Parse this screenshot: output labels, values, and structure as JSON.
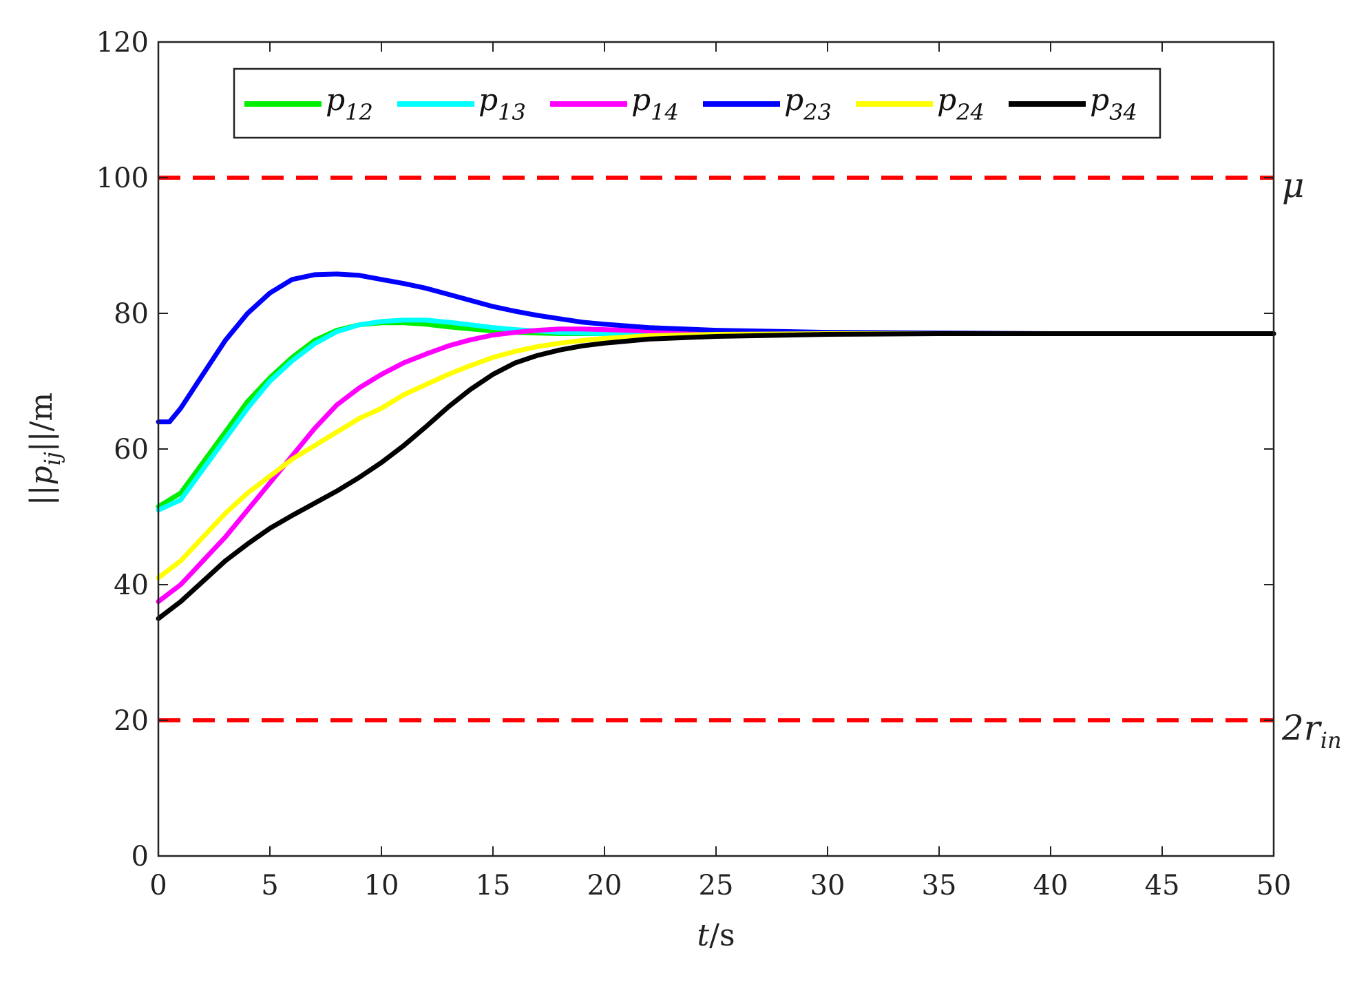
{
  "chart_data": {
    "type": "line",
    "title": "",
    "xlabel": {
      "var": "t",
      "unit": "/s"
    },
    "ylabel": {
      "pre": "||",
      "var": "p",
      "sub": "ij",
      "post": "||/m"
    },
    "xlim": [
      0,
      50
    ],
    "ylim": [
      0,
      120
    ],
    "xticks": [
      0,
      5,
      10,
      15,
      20,
      25,
      30,
      35,
      40,
      45,
      50
    ],
    "yticks": [
      0,
      20,
      40,
      60,
      80,
      100,
      120
    ],
    "grid": false,
    "legend_position": "top",
    "reference_lines": [
      {
        "name": "mu",
        "y": 100,
        "color": "#ff0000",
        "label": "μ",
        "label_sub": ""
      },
      {
        "name": "2r-in",
        "y": 20,
        "color": "#ff0000",
        "label": "2r",
        "label_sub": "in"
      }
    ],
    "series": [
      {
        "name": "p12",
        "label": "p",
        "sub": "12",
        "color": "#00ee00",
        "x": [
          0,
          1,
          2,
          3,
          4,
          5,
          6,
          7,
          8,
          9,
          10,
          11,
          12,
          13,
          14,
          15,
          16,
          17,
          18,
          19,
          20,
          22,
          25,
          30,
          35,
          40,
          45,
          50
        ],
        "y": [
          51.5,
          53.5,
          58,
          62.5,
          67,
          70.5,
          73.5,
          76,
          77.5,
          78.3,
          78.6,
          78.6,
          78.4,
          78,
          77.7,
          77.4,
          77.2,
          77.1,
          77.0,
          77.0,
          77.0,
          77.0,
          77.0,
          77.0,
          77.0,
          77.0,
          77.0,
          77.0
        ]
      },
      {
        "name": "p13",
        "label": "p",
        "sub": "13",
        "color": "#00ffff",
        "x": [
          0,
          1,
          2,
          3,
          4,
          5,
          6,
          7,
          8,
          9,
          10,
          11,
          12,
          13,
          14,
          15,
          16,
          17,
          18,
          19,
          20,
          22,
          25,
          30,
          35,
          40,
          45,
          50
        ],
        "y": [
          51,
          52.5,
          57,
          61.5,
          66,
          70,
          73,
          75.5,
          77.3,
          78.3,
          78.8,
          79,
          79,
          78.7,
          78.3,
          77.9,
          77.6,
          77.4,
          77.2,
          77.1,
          77.0,
          77.0,
          77.0,
          77.0,
          77.0,
          77.0,
          77.0,
          77.0
        ]
      },
      {
        "name": "p14",
        "label": "p",
        "sub": "14",
        "color": "#ff00ff",
        "x": [
          0,
          1,
          2,
          3,
          4,
          5,
          6,
          7,
          8,
          9,
          10,
          11,
          12,
          13,
          14,
          15,
          16,
          17,
          18,
          19,
          20,
          22,
          25,
          30,
          35,
          40,
          45,
          50
        ],
        "y": [
          37.5,
          40,
          43.5,
          47,
          51,
          55,
          59,
          63,
          66.5,
          69,
          71,
          72.7,
          74,
          75.2,
          76.1,
          76.8,
          77.2,
          77.5,
          77.7,
          77.7,
          77.6,
          77.4,
          77.2,
          77.0,
          77.0,
          77.0,
          77.0,
          77.0
        ]
      },
      {
        "name": "p23",
        "label": "p",
        "sub": "23",
        "color": "#0000ff",
        "x": [
          0,
          0.5,
          1,
          2,
          3,
          4,
          5,
          6,
          7,
          8,
          9,
          10,
          11,
          12,
          13,
          14,
          15,
          16,
          17,
          18,
          19,
          20,
          22,
          25,
          30,
          35,
          40,
          45,
          50
        ],
        "y": [
          64,
          64,
          66,
          71,
          76,
          80,
          83,
          85,
          85.7,
          85.8,
          85.6,
          85,
          84.4,
          83.7,
          82.8,
          81.9,
          81,
          80.3,
          79.7,
          79.2,
          78.7,
          78.4,
          77.9,
          77.5,
          77.2,
          77.1,
          77.0,
          77.0,
          77.0
        ]
      },
      {
        "name": "p24",
        "label": "p",
        "sub": "24",
        "color": "#ffff00",
        "x": [
          0,
          1,
          2,
          3,
          4,
          5,
          6,
          7,
          8,
          9,
          10,
          11,
          12,
          13,
          14,
          15,
          16,
          17,
          18,
          19,
          20,
          22,
          25,
          30,
          35,
          40,
          45,
          50
        ],
        "y": [
          41,
          43.5,
          47,
          50.5,
          53.5,
          56,
          58.5,
          60.5,
          62.5,
          64.5,
          66,
          68,
          69.5,
          71,
          72.3,
          73.5,
          74.4,
          75.1,
          75.6,
          76,
          76.3,
          76.7,
          76.9,
          77.0,
          77.0,
          77.0,
          77.0,
          77.0
        ]
      },
      {
        "name": "p34",
        "label": "p",
        "sub": "34",
        "color": "#000000",
        "x": [
          0,
          1,
          2,
          3,
          4,
          5,
          6,
          7,
          8,
          9,
          10,
          11,
          12,
          13,
          14,
          15,
          16,
          17,
          18,
          19,
          20,
          22,
          25,
          30,
          35,
          40,
          45,
          50
        ],
        "y": [
          35,
          37.5,
          40.5,
          43.5,
          46,
          48.3,
          50.2,
          52,
          53.8,
          55.8,
          58,
          60.5,
          63.3,
          66.2,
          68.8,
          71,
          72.7,
          73.8,
          74.6,
          75.2,
          75.6,
          76.2,
          76.6,
          76.9,
          77.0,
          77.0,
          77.0,
          77.0
        ]
      }
    ]
  }
}
